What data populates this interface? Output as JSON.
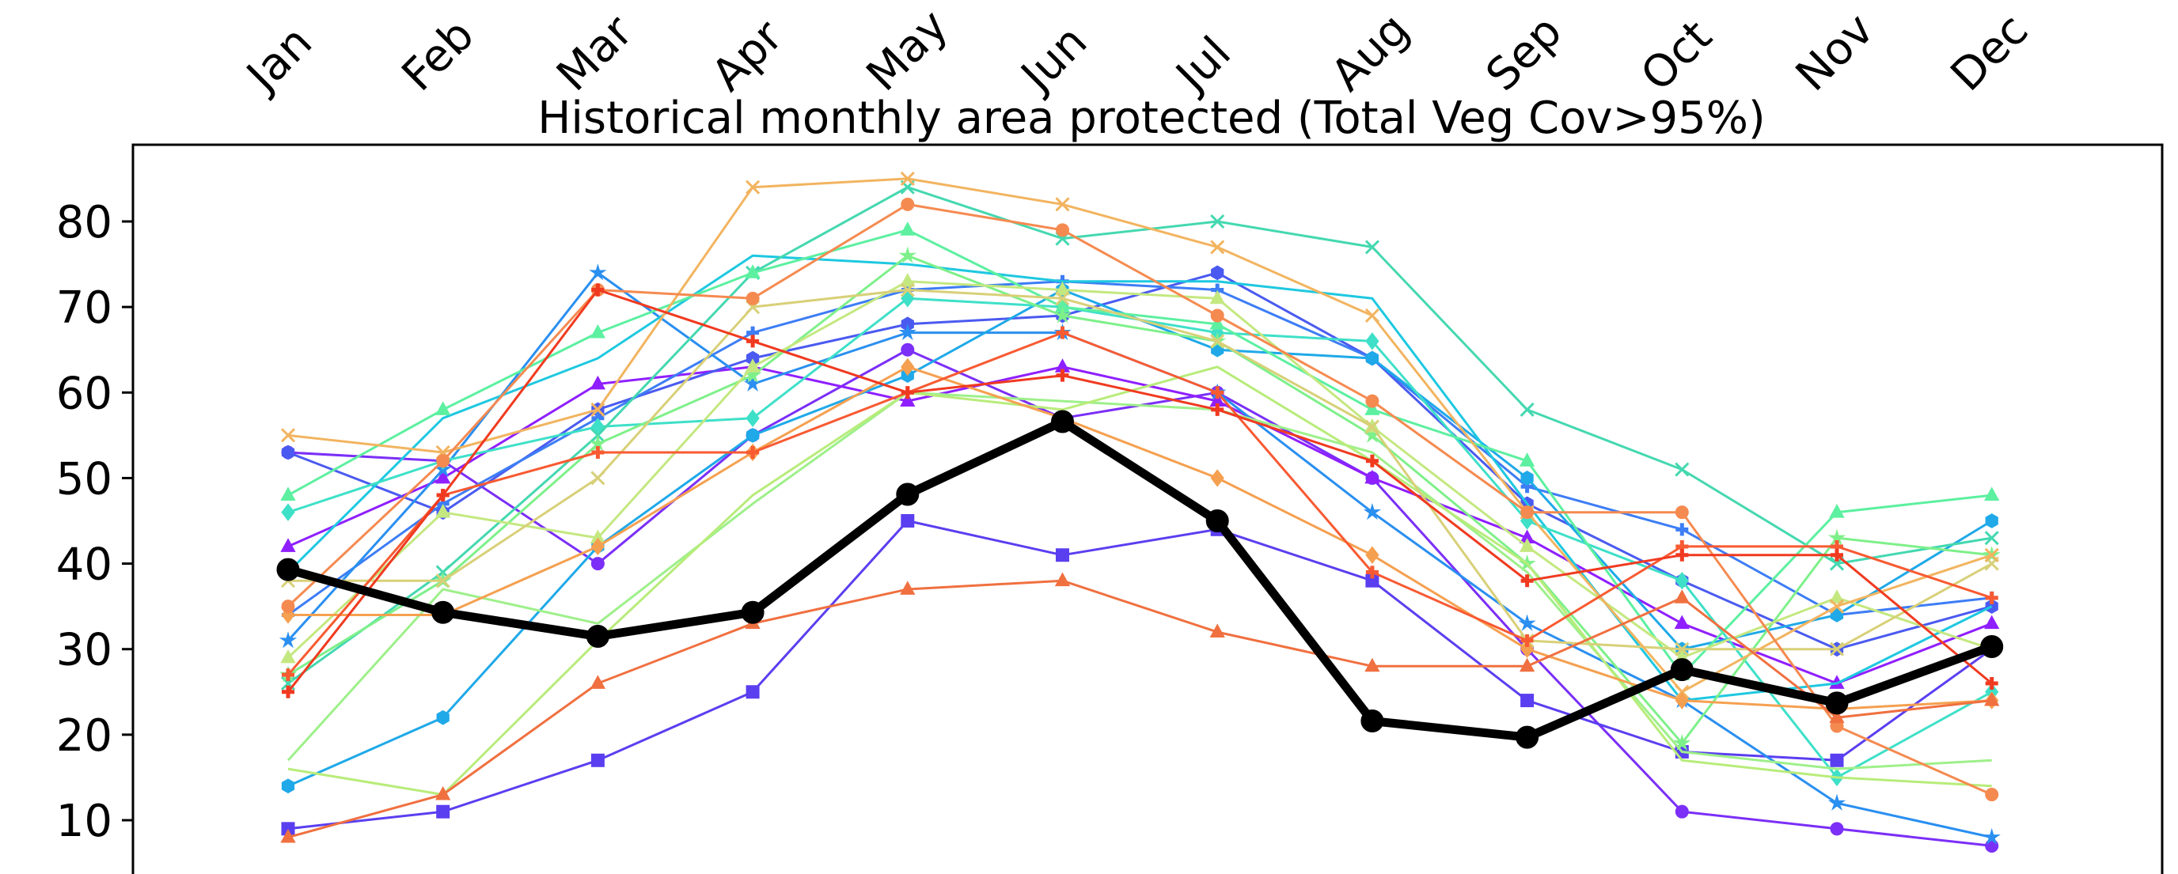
{
  "chart_data": {
    "type": "line",
    "title": "Historical monthly area protected (Total Veg Cov>95%)",
    "xlabel": "",
    "ylabel": "",
    "categories": [
      "Jan",
      "Feb",
      "Mar",
      "Apr",
      "May",
      "Jun",
      "Jul",
      "Aug",
      "Sep",
      "Oct",
      "Nov",
      "Dec"
    ],
    "x_axis_position": "top",
    "x_tick_rotation_deg": 45,
    "yticks": [
      10,
      20,
      30,
      40,
      50,
      60,
      70,
      80
    ],
    "ylim": [
      0,
      88
    ],
    "grid": false,
    "legend": "none",
    "series": [
      {
        "color": "#7b2ff7",
        "marker": "circle",
        "values": [
          53,
          52,
          40,
          55,
          65,
          57,
          60,
          50,
          30,
          11,
          9,
          7
        ]
      },
      {
        "color": "#5a3ff0",
        "marker": "square",
        "values": [
          9,
          11,
          17,
          25,
          45,
          41,
          44,
          38,
          24,
          18,
          17,
          30
        ]
      },
      {
        "color": "#8f1fff",
        "marker": "triangle",
        "values": [
          42,
          50,
          61,
          63,
          59,
          63,
          59,
          50,
          43,
          33,
          26,
          33
        ]
      },
      {
        "color": "#4a5af0",
        "marker": "hexagon",
        "values": [
          53,
          46,
          58,
          64,
          68,
          69,
          74,
          64,
          47,
          38,
          30,
          35
        ]
      },
      {
        "color": "#3d7df5",
        "marker": "plus",
        "values": [
          34,
          47,
          57,
          67,
          72,
          73,
          72,
          64,
          49,
          44,
          34,
          36
        ]
      },
      {
        "color": "#2a8ff0",
        "marker": "star",
        "values": [
          31,
          51,
          74,
          61,
          67,
          67,
          60,
          46,
          33,
          24,
          12,
          8
        ]
      },
      {
        "color": "#1fa9e8",
        "marker": "hexagon",
        "values": [
          14,
          22,
          42,
          55,
          62,
          72,
          65,
          64,
          50,
          30,
          34,
          45
        ]
      },
      {
        "color": "#1ec8e0",
        "marker": "none",
        "values": [
          39,
          57,
          64,
          76,
          75,
          73,
          73,
          71,
          47,
          24,
          26,
          35
        ]
      },
      {
        "color": "#3ee0c8",
        "marker": "diamond",
        "values": [
          46,
          52,
          56,
          57,
          71,
          70,
          67,
          66,
          45,
          38,
          15,
          25
        ]
      },
      {
        "color": "#44d8b0",
        "marker": "x",
        "values": [
          26,
          39,
          55,
          74,
          84,
          78,
          80,
          77,
          58,
          51,
          40,
          43
        ]
      },
      {
        "color": "#5cf0a0",
        "marker": "triangle",
        "values": [
          48,
          58,
          67,
          74,
          79,
          70,
          68,
          58,
          52,
          27,
          46,
          48
        ]
      },
      {
        "color": "#7ef08a",
        "marker": "star",
        "values": [
          27,
          38,
          54,
          62,
          76,
          69,
          66,
          55,
          40,
          19,
          43,
          41
        ]
      },
      {
        "color": "#9ef08a",
        "marker": "none",
        "values": [
          17,
          37,
          33,
          47,
          60,
          59,
          58,
          53,
          39,
          18,
          16,
          17
        ]
      },
      {
        "color": "#b8ec7a",
        "marker": "none",
        "values": [
          16,
          13,
          31,
          48,
          60,
          58,
          63,
          52,
          40,
          17,
          15,
          14
        ]
      },
      {
        "color": "#c4e880",
        "marker": "triangle",
        "values": [
          29,
          46,
          43,
          63,
          73,
          72,
          71,
          56,
          42,
          29,
          36,
          30
        ]
      },
      {
        "color": "#d8d078",
        "marker": "x",
        "values": [
          38,
          38,
          50,
          70,
          72,
          71,
          66,
          56,
          31,
          30,
          30,
          40
        ]
      },
      {
        "color": "#f2b460",
        "marker": "x",
        "values": [
          55,
          53,
          58,
          84,
          85,
          82,
          77,
          69,
          46,
          25,
          35,
          41
        ]
      },
      {
        "color": "#f5a050",
        "marker": "diamond",
        "values": [
          34,
          34,
          42,
          53,
          63,
          57,
          50,
          41,
          30,
          24,
          23,
          24
        ]
      },
      {
        "color": "#f58a50",
        "marker": "circle",
        "values": [
          35,
          52,
          72,
          71,
          82,
          79,
          69,
          59,
          46,
          46,
          21,
          13
        ]
      },
      {
        "color": "#f07040",
        "marker": "triangle",
        "values": [
          8,
          13,
          26,
          33,
          37,
          38,
          32,
          28,
          28,
          36,
          22,
          24
        ]
      },
      {
        "color": "#f85a32",
        "marker": "plus",
        "values": [
          27,
          48,
          53,
          53,
          60,
          67,
          60,
          39,
          31,
          42,
          42,
          36
        ]
      },
      {
        "color": "#f03a20",
        "marker": "plus",
        "values": [
          25,
          48,
          72,
          66,
          60,
          62,
          58,
          52,
          38,
          41,
          41,
          26
        ]
      },
      {
        "color": "#000000",
        "marker": "circle",
        "emphasis": true,
        "values": [
          39.3,
          34.3,
          31.5,
          34.3,
          48.1,
          56.6,
          45.0,
          21.6,
          19.7,
          27.6,
          23.7,
          30.3
        ]
      }
    ]
  }
}
